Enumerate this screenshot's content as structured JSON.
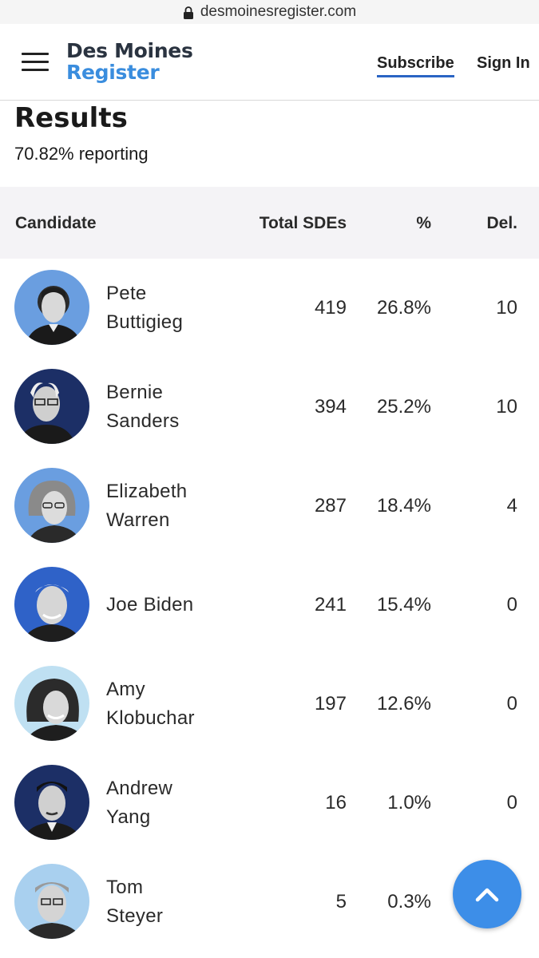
{
  "browser": {
    "url": "desmoinesregister.com"
  },
  "header": {
    "logo_line1": "Des Moines",
    "logo_line2": "Register",
    "subscribe_label": "Subscribe",
    "signin_label": "Sign In"
  },
  "results": {
    "title": "Results",
    "reporting": "70.82% reporting"
  },
  "table": {
    "headers": {
      "candidate": "Candidate",
      "sdes": "Total SDEs",
      "pct": "%",
      "del": "Del."
    },
    "rows": [
      {
        "first": "Pete",
        "last": "Buttigieg",
        "sdes": "419",
        "pct": "26.8%",
        "del": "10"
      },
      {
        "first": "Bernie",
        "last": "Sanders",
        "sdes": "394",
        "pct": "25.2%",
        "del": "10"
      },
      {
        "first": "Elizabeth",
        "last": "Warren",
        "sdes": "287",
        "pct": "18.4%",
        "del": "4"
      },
      {
        "name": "Joe Biden",
        "sdes": "241",
        "pct": "15.4%",
        "del": "0"
      },
      {
        "first": "Amy",
        "last": "Klobuchar",
        "sdes": "197",
        "pct": "12.6%",
        "del": "0"
      },
      {
        "first": "Andrew",
        "last": "Yang",
        "sdes": "16",
        "pct": "1.0%",
        "del": "0"
      },
      {
        "first": "Tom",
        "last": "Steyer",
        "sdes": "5",
        "pct": "0.3%",
        "del": ""
      }
    ]
  },
  "colors": {
    "accent": "#3a8dde",
    "fab": "#3d8ee8",
    "avatar_light": "#6a9ee0",
    "avatar_dark": "#1c2f66"
  },
  "icons": {
    "menu": "hamburger-icon",
    "lock": "lock-icon",
    "back_to_top": "chevron-up-icon",
    "avatar": "candidate-photo-icon"
  }
}
